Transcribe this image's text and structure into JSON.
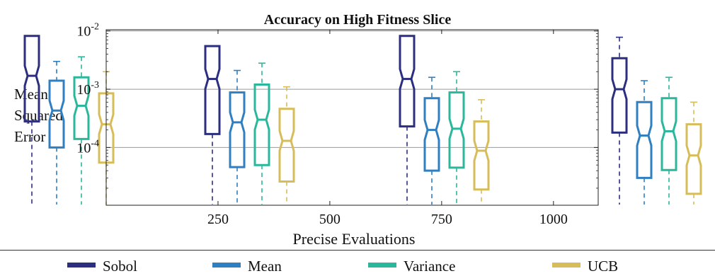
{
  "chart_data": {
    "type": "box",
    "title": "Accuracy on High Fitness Slice",
    "xlabel": "Precise Evaluations",
    "ylabel": [
      "Mean",
      "Squared",
      "Error"
    ],
    "yscale": "log",
    "ylim": [
      1.02e-05,
      0.0105
    ],
    "yticks": [
      {
        "value": 0.01,
        "base": "10",
        "exp": "-2"
      },
      {
        "value": 0.001,
        "base": "10",
        "exp": "-3"
      },
      {
        "value": 0.0001,
        "base": "10",
        "exp": "-4"
      }
    ],
    "xlim": [
      0,
      1100
    ],
    "xticks": [
      250,
      500,
      750,
      1000
    ],
    "grid": "horizontal",
    "legend_position": "bottom",
    "series": [
      {
        "name": "Sobol",
        "color": "#2c2e7f"
      },
      {
        "name": "Mean",
        "color": "#2f7fc1"
      },
      {
        "name": "Variance",
        "color": "#2ab79b"
      },
      {
        "name": "UCB",
        "color": "#d6bd5a"
      }
    ],
    "groups": [
      {
        "center": 150,
        "boxes": [
          {
            "series": "Sobol",
            "whisker_low": 1.05e-05,
            "q1": 0.00028,
            "median": 0.0017,
            "q3": 0.0082,
            "whisker_high": 0.0082
          },
          {
            "series": "Mean",
            "whisker_low": 1.05e-05,
            "q1": 0.0001,
            "median": 0.00043,
            "q3": 0.0014,
            "whisker_high": 0.003
          },
          {
            "series": "Variance",
            "whisker_low": 1.05e-05,
            "q1": 0.00014,
            "median": 0.00052,
            "q3": 0.0016,
            "whisker_high": 0.0036
          },
          {
            "series": "UCB",
            "whisker_low": 1.05e-05,
            "q1": 5.5e-05,
            "median": 0.00025,
            "q3": 0.00085,
            "whisker_high": 0.002
          }
        ]
      },
      {
        "center": 405,
        "boxes": [
          {
            "series": "Sobol",
            "whisker_low": 1.05e-05,
            "q1": 0.00017,
            "median": 0.0015,
            "q3": 0.0055,
            "whisker_high": 0.0055
          },
          {
            "series": "Mean",
            "whisker_low": 1.05e-05,
            "q1": 4.6e-05,
            "median": 0.00027,
            "q3": 0.00088,
            "whisker_high": 0.0021
          },
          {
            "series": "Variance",
            "whisker_low": 1.05e-05,
            "q1": 5e-05,
            "median": 0.0003,
            "q3": 0.0012,
            "whisker_high": 0.0028
          },
          {
            "series": "UCB",
            "whisker_low": 1.05e-05,
            "q1": 2.6e-05,
            "median": 0.00013,
            "q3": 0.00046,
            "whisker_high": 0.0011
          }
        ]
      },
      {
        "center": 680,
        "boxes": [
          {
            "series": "Sobol",
            "whisker_low": 1.05e-05,
            "q1": 0.00023,
            "median": 0.0015,
            "q3": 0.0082,
            "whisker_high": 0.0082
          },
          {
            "series": "Mean",
            "whisker_low": 1.05e-05,
            "q1": 4e-05,
            "median": 0.0002,
            "q3": 0.0007,
            "whisker_high": 0.0016
          },
          {
            "series": "Variance",
            "whisker_low": 1.05e-05,
            "q1": 4.5e-05,
            "median": 0.00021,
            "q3": 0.00088,
            "whisker_high": 0.002
          },
          {
            "series": "UCB",
            "whisker_low": 1.05e-05,
            "q1": 1.9e-05,
            "median": 8.8e-05,
            "q3": 0.00028,
            "whisker_high": 0.00066
          }
        ]
      },
      {
        "center": 980,
        "boxes": [
          {
            "series": "Sobol",
            "whisker_low": 1.05e-05,
            "q1": 0.00018,
            "median": 0.001,
            "q3": 0.0034,
            "whisker_high": 0.0078
          },
          {
            "series": "Mean",
            "whisker_low": 1.05e-05,
            "q1": 3e-05,
            "median": 0.00016,
            "q3": 0.0006,
            "whisker_high": 0.0014
          },
          {
            "series": "Variance",
            "whisker_low": 1.05e-05,
            "q1": 4.1e-05,
            "median": 0.00019,
            "q3": 0.0007,
            "whisker_high": 0.0016
          },
          {
            "series": "UCB",
            "whisker_low": 1.05e-05,
            "q1": 1.6e-05,
            "median": 7.3e-05,
            "q3": 0.00025,
            "whisker_high": 0.0006
          }
        ]
      }
    ]
  }
}
